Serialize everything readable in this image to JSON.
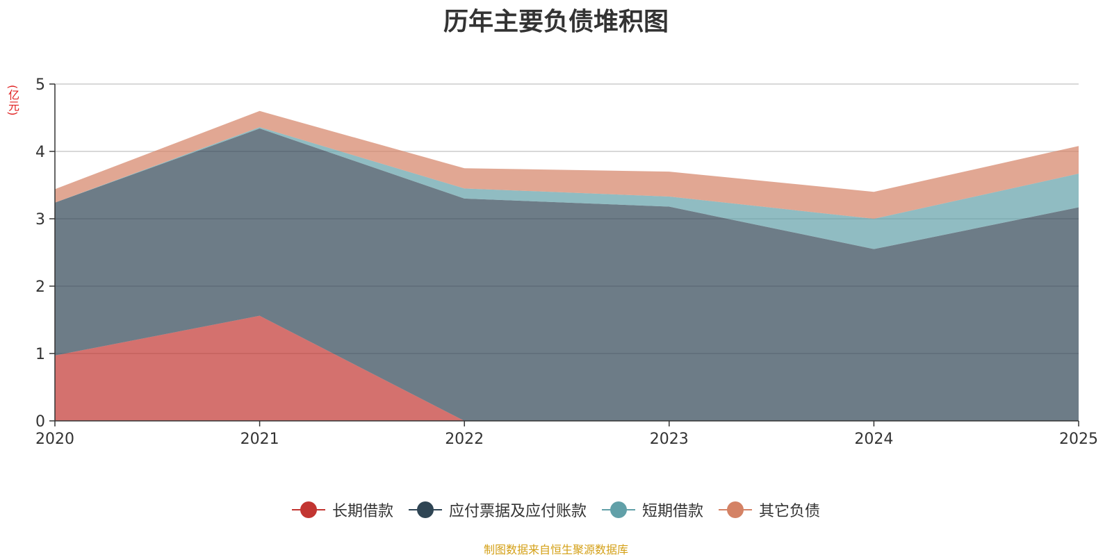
{
  "chart_data": {
    "type": "area",
    "stacked": true,
    "title": "历年主要负债堆积图",
    "unit_label": "(亿元)",
    "categories": [
      "2020",
      "2021",
      "2022",
      "2023",
      "2024",
      "2025"
    ],
    "ylim": [
      0,
      5
    ],
    "yticks": [
      0,
      1,
      2,
      3,
      4,
      5
    ],
    "grid": true,
    "legend_position": "bottom",
    "series": [
      {
        "name": "长期借款",
        "color": "#c23531",
        "values": [
          0.97,
          1.56,
          0.0,
          0.0,
          0.0,
          0.0
        ]
      },
      {
        "name": "应付票据及应付账款",
        "color": "#2f4554",
        "values": [
          2.27,
          2.78,
          3.3,
          3.18,
          2.55,
          3.17
        ]
      },
      {
        "name": "短期借款",
        "color": "#61a0a8",
        "values": [
          0.0,
          0.02,
          0.15,
          0.15,
          0.45,
          0.5
        ]
      },
      {
        "name": "其它负债",
        "color": "#d48265",
        "values": [
          0.2,
          0.24,
          0.3,
          0.37,
          0.4,
          0.41
        ]
      }
    ],
    "source_note": "制图数据来自恒生聚源数据库"
  }
}
